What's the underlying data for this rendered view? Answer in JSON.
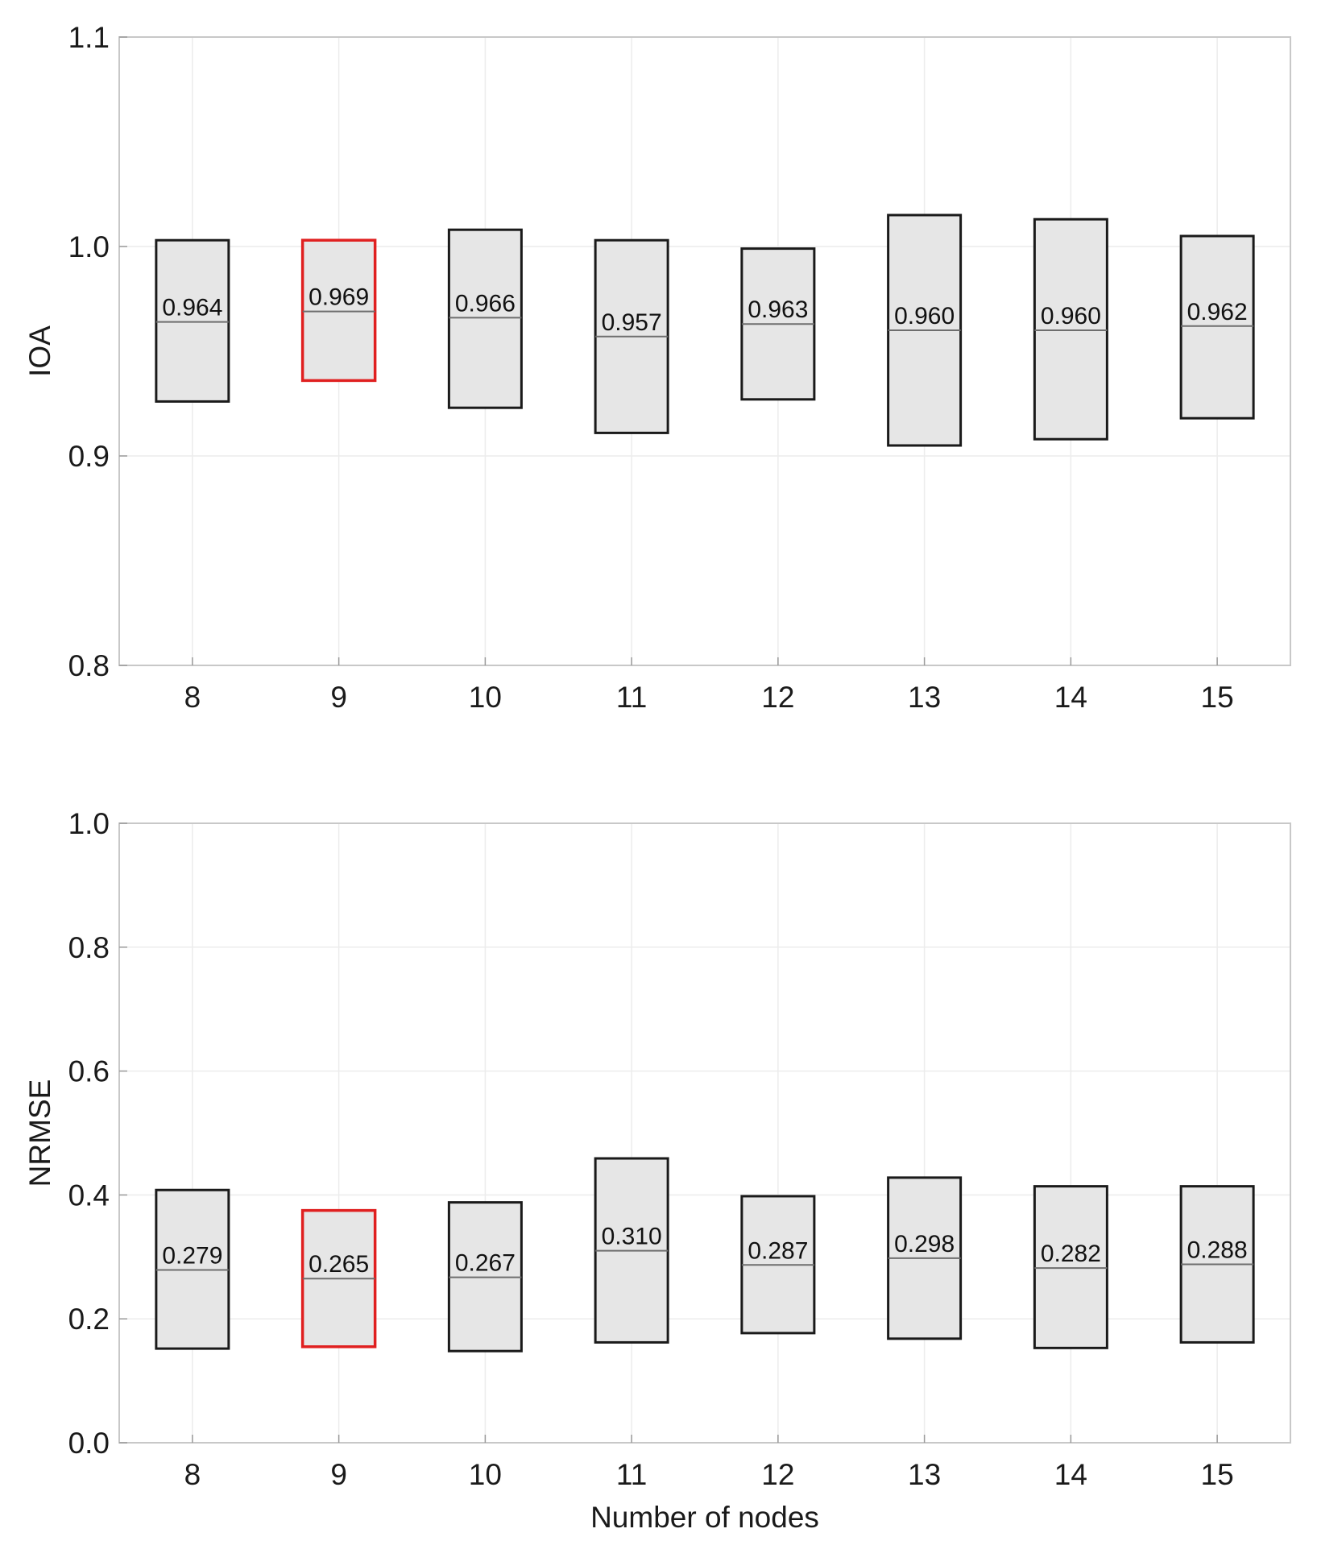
{
  "chart_data": [
    {
      "type": "box",
      "ylabel": "IOA",
      "xlabel": "",
      "categories": [
        "8",
        "9",
        "10",
        "11",
        "12",
        "13",
        "14",
        "15"
      ],
      "ylim": [
        0.8,
        1.1
      ],
      "yticks": [
        "0.8",
        "0.9",
        "1.0",
        "1.1"
      ],
      "grid": true,
      "highlight_category": "9",
      "highlight_color": "#e02020",
      "box_fill": "#e6e6e6",
      "boxes": [
        {
          "category": "8",
          "low": 0.926,
          "high": 1.003,
          "median": 0.964,
          "label": "0.964"
        },
        {
          "category": "9",
          "low": 0.936,
          "high": 1.003,
          "median": 0.969,
          "label": "0.969"
        },
        {
          "category": "10",
          "low": 0.923,
          "high": 1.008,
          "median": 0.966,
          "label": "0.966"
        },
        {
          "category": "11",
          "low": 0.911,
          "high": 1.003,
          "median": 0.957,
          "label": "0.957"
        },
        {
          "category": "12",
          "low": 0.927,
          "high": 0.999,
          "median": 0.963,
          "label": "0.963"
        },
        {
          "category": "13",
          "low": 0.905,
          "high": 1.015,
          "median": 0.96,
          "label": "0.960"
        },
        {
          "category": "14",
          "low": 0.908,
          "high": 1.013,
          "median": 0.96,
          "label": "0.960"
        },
        {
          "category": "15",
          "low": 0.918,
          "high": 1.005,
          "median": 0.962,
          "label": "0.962"
        }
      ]
    },
    {
      "type": "box",
      "ylabel": "NRMSE",
      "xlabel": "Number of nodes",
      "categories": [
        "8",
        "9",
        "10",
        "11",
        "12",
        "13",
        "14",
        "15"
      ],
      "ylim": [
        0.0,
        1.0
      ],
      "yticks": [
        "0.0",
        "0.2",
        "0.4",
        "0.6",
        "0.8",
        "1.0"
      ],
      "grid": true,
      "highlight_category": "9",
      "highlight_color": "#e02020",
      "box_fill": "#e6e6e6",
      "boxes": [
        {
          "category": "8",
          "low": 0.152,
          "high": 0.408,
          "median": 0.279,
          "label": "0.279"
        },
        {
          "category": "9",
          "low": 0.155,
          "high": 0.375,
          "median": 0.265,
          "label": "0.265"
        },
        {
          "category": "10",
          "low": 0.148,
          "high": 0.388,
          "median": 0.267,
          "label": "0.267"
        },
        {
          "category": "11",
          "low": 0.162,
          "high": 0.459,
          "median": 0.31,
          "label": "0.310"
        },
        {
          "category": "12",
          "low": 0.177,
          "high": 0.398,
          "median": 0.287,
          "label": "0.287"
        },
        {
          "category": "13",
          "low": 0.168,
          "high": 0.428,
          "median": 0.298,
          "label": "0.298"
        },
        {
          "category": "14",
          "low": 0.153,
          "high": 0.414,
          "median": 0.282,
          "label": "0.282"
        },
        {
          "category": "15",
          "low": 0.162,
          "high": 0.414,
          "median": 0.288,
          "label": "0.288"
        }
      ]
    }
  ]
}
